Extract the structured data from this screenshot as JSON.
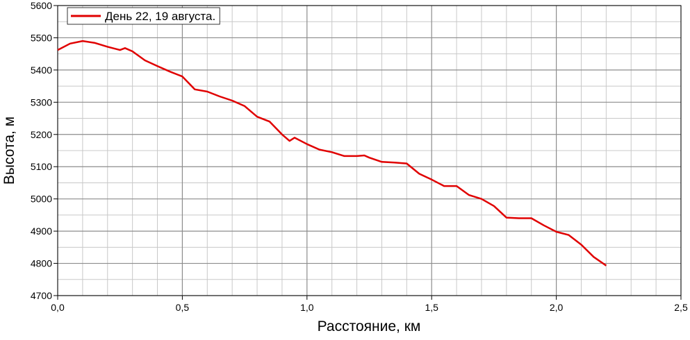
{
  "chart_data": {
    "type": "line",
    "x_label": "Расстояние, км",
    "y_label": "Высота, м",
    "x": [
      0,
      0.05,
      0.1,
      0.15,
      0.2,
      0.25,
      0.27,
      0.3,
      0.35,
      0.4,
      0.45,
      0.5,
      0.55,
      0.6,
      0.65,
      0.7,
      0.75,
      0.8,
      0.85,
      0.9,
      0.93,
      0.95,
      1.0,
      1.05,
      1.1,
      1.15,
      1.2,
      1.23,
      1.25,
      1.3,
      1.35,
      1.4,
      1.45,
      1.5,
      1.55,
      1.6,
      1.65,
      1.7,
      1.75,
      1.8,
      1.85,
      1.9,
      1.95,
      2.0,
      2.05,
      2.1,
      2.15,
      2.2
    ],
    "series": [
      {
        "name": "День 22, 19 августа.",
        "color": "#e00000",
        "values": [
          5462,
          5482,
          5490,
          5484,
          5472,
          5462,
          5468,
          5458,
          5430,
          5412,
          5395,
          5380,
          5340,
          5333,
          5318,
          5305,
          5288,
          5255,
          5240,
          5200,
          5180,
          5190,
          5170,
          5153,
          5145,
          5133,
          5133,
          5135,
          5128,
          5115,
          5113,
          5110,
          5078,
          5060,
          5040,
          5040,
          5012,
          5000,
          4978,
          4942,
          4940,
          4940,
          4918,
          4898,
          4888,
          4858,
          4820,
          4793
        ]
      }
    ],
    "xlim": [
      0,
      2.5
    ],
    "xticks": [
      {
        "value": 0,
        "label": "0,0"
      },
      {
        "value": 0.5,
        "label": "0,5"
      },
      {
        "value": 1,
        "label": "1,0"
      },
      {
        "value": 1.5,
        "label": "1,5"
      },
      {
        "value": 2,
        "label": "2,0"
      },
      {
        "value": 2.5,
        "label": "2,5"
      }
    ],
    "ylim": [
      4700,
      5600
    ],
    "yticks": [
      4700,
      4800,
      4900,
      5000,
      5100,
      5200,
      5300,
      5400,
      5500,
      5600
    ],
    "grid": true,
    "legend": "top-left"
  }
}
